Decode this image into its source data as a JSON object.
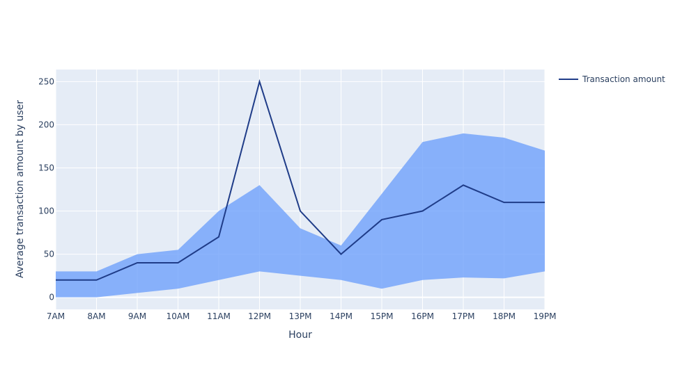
{
  "chart_data": {
    "type": "line",
    "title": "",
    "xlabel": "Hour",
    "ylabel": "Average transaction amount by user",
    "categories": [
      "7AM",
      "8AM",
      "9AM",
      "10AM",
      "11AM",
      "12PM",
      "13PM",
      "14PM",
      "15PM",
      "16PM",
      "17PM",
      "18PM",
      "19PM"
    ],
    "series": [
      {
        "name": "Transaction amount",
        "values": [
          20,
          20,
          40,
          40,
          70,
          250,
          100,
          50,
          90,
          100,
          130,
          110,
          110
        ],
        "color": "#1f3c88"
      }
    ],
    "band": {
      "upper": [
        30,
        30,
        50,
        55,
        100,
        130,
        80,
        60,
        120,
        180,
        190,
        185,
        170
      ],
      "lower": [
        0,
        0,
        5,
        10,
        20,
        30,
        25,
        20,
        10,
        20,
        23,
        22,
        30
      ],
      "color": "#6fa1fb"
    },
    "yticks": [
      0,
      50,
      100,
      150,
      200,
      250
    ],
    "ylim": [
      -14,
      264
    ],
    "grid": true,
    "legend_position": "top-right",
    "plot_background": "#e5ecf6"
  }
}
